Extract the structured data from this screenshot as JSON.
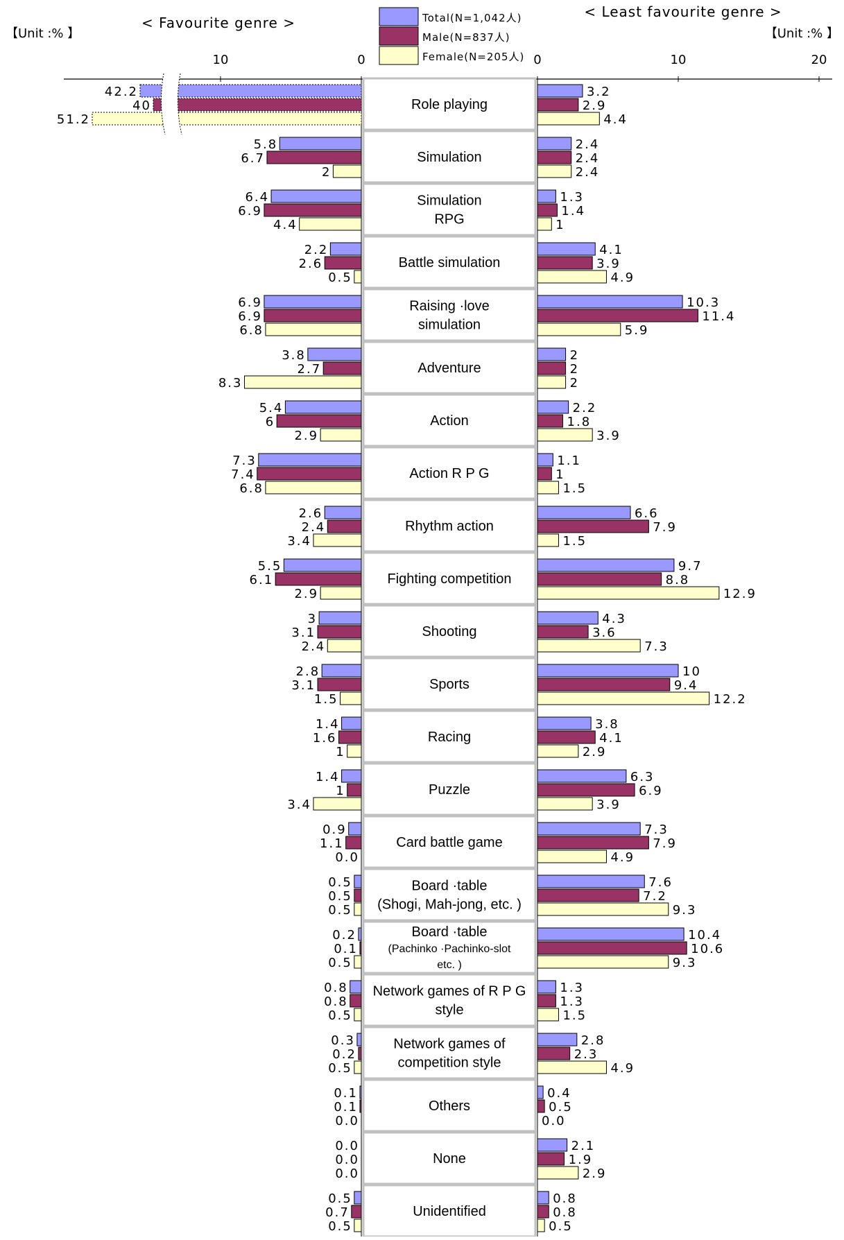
{
  "titles": {
    "left": "< Favourite genre >",
    "right": "< Least favourite genre >",
    "unit_left": "【Unit :% 】",
    "unit_right": "【Unit :% 】"
  },
  "colors": {
    "total": "#9999ff",
    "male": "#993366",
    "female": "#ffffcc",
    "cat_box_border": "#c0c0c0"
  },
  "chart_data": {
    "type": "bar",
    "orientation": "horizontal-butterfly",
    "legend": [
      {
        "key": "total",
        "label": "Total(N=1,042人)"
      },
      {
        "key": "male",
        "label": "Male(N=837人)"
      },
      {
        "key": "female",
        "label": "Female(N=205人)"
      }
    ],
    "left_panel": {
      "title": "< Favourite genre >",
      "ticks": [
        "10",
        "0"
      ],
      "broken_axis": true
    },
    "right_panel": {
      "title": "< Least favourite genre >",
      "ticks": [
        "0",
        "10",
        "20"
      ],
      "xlim": [
        0,
        20
      ]
    },
    "categories": [
      {
        "lines": [
          "Role playing"
        ],
        "small": false,
        "fav": {
          "total": {
            "v": 42.2,
            "t": "42.2"
          },
          "male": {
            "v": 40,
            "t": "40"
          },
          "female": {
            "v": 51.2,
            "t": "51.2"
          }
        },
        "least": {
          "total": {
            "v": 3.2,
            "t": "3.2"
          },
          "male": {
            "v": 2.9,
            "t": "2.9"
          },
          "female": {
            "v": 4.4,
            "t": "4.4"
          }
        }
      },
      {
        "lines": [
          "Simulation"
        ],
        "small": false,
        "fav": {
          "total": {
            "v": 5.8,
            "t": "5.8"
          },
          "male": {
            "v": 6.7,
            "t": "6.7"
          },
          "female": {
            "v": 2,
            "t": "2"
          }
        },
        "least": {
          "total": {
            "v": 2.4,
            "t": "2.4"
          },
          "male": {
            "v": 2.4,
            "t": "2.4"
          },
          "female": {
            "v": 2.4,
            "t": "2.4"
          }
        }
      },
      {
        "lines": [
          "Simulation",
          "RPG"
        ],
        "small": false,
        "fav": {
          "total": {
            "v": 6.4,
            "t": "6.4"
          },
          "male": {
            "v": 6.9,
            "t": "6.9"
          },
          "female": {
            "v": 4.4,
            "t": "4.4"
          }
        },
        "least": {
          "total": {
            "v": 1.3,
            "t": "1.3"
          },
          "male": {
            "v": 1.4,
            "t": "1.4"
          },
          "female": {
            "v": 1,
            "t": "1"
          }
        }
      },
      {
        "lines": [
          "Battle simulation"
        ],
        "small": false,
        "fav": {
          "total": {
            "v": 2.2,
            "t": "2.2"
          },
          "male": {
            "v": 2.6,
            "t": "2.6"
          },
          "female": {
            "v": 0.5,
            "t": "0.5"
          }
        },
        "least": {
          "total": {
            "v": 4.1,
            "t": "4.1"
          },
          "male": {
            "v": 3.9,
            "t": "3.9"
          },
          "female": {
            "v": 4.9,
            "t": "4.9"
          }
        }
      },
      {
        "lines": [
          "Raising ·love",
          "simulation"
        ],
        "small": false,
        "fav": {
          "total": {
            "v": 6.9,
            "t": "6.9"
          },
          "male": {
            "v": 6.9,
            "t": "6.9"
          },
          "female": {
            "v": 6.8,
            "t": "6.8"
          }
        },
        "least": {
          "total": {
            "v": 10.3,
            "t": "10.3"
          },
          "male": {
            "v": 11.4,
            "t": "11.4"
          },
          "female": {
            "v": 5.9,
            "t": "5.9"
          }
        }
      },
      {
        "lines": [
          "Adventure"
        ],
        "small": false,
        "fav": {
          "total": {
            "v": 3.8,
            "t": "3.8"
          },
          "male": {
            "v": 2.7,
            "t": "2.7"
          },
          "female": {
            "v": 8.3,
            "t": "8.3"
          }
        },
        "least": {
          "total": {
            "v": 2,
            "t": "2"
          },
          "male": {
            "v": 2,
            "t": "2"
          },
          "female": {
            "v": 2,
            "t": "2"
          }
        }
      },
      {
        "lines": [
          "Action"
        ],
        "small": false,
        "fav": {
          "total": {
            "v": 5.4,
            "t": "5.4"
          },
          "male": {
            "v": 6,
            "t": "6"
          },
          "female": {
            "v": 2.9,
            "t": "2.9"
          }
        },
        "least": {
          "total": {
            "v": 2.2,
            "t": "2.2"
          },
          "male": {
            "v": 1.8,
            "t": "1.8"
          },
          "female": {
            "v": 3.9,
            "t": "3.9"
          }
        }
      },
      {
        "lines": [
          "Action R P G"
        ],
        "small": false,
        "fav": {
          "total": {
            "v": 7.3,
            "t": "7.3"
          },
          "male": {
            "v": 7.4,
            "t": "7.4"
          },
          "female": {
            "v": 6.8,
            "t": "6.8"
          }
        },
        "least": {
          "total": {
            "v": 1.1,
            "t": "1.1"
          },
          "male": {
            "v": 1,
            "t": "1"
          },
          "female": {
            "v": 1.5,
            "t": "1.5"
          }
        }
      },
      {
        "lines": [
          "Rhythm action"
        ],
        "small": false,
        "fav": {
          "total": {
            "v": 2.6,
            "t": "2.6"
          },
          "male": {
            "v": 2.4,
            "t": "2.4"
          },
          "female": {
            "v": 3.4,
            "t": "3.4"
          }
        },
        "least": {
          "total": {
            "v": 6.6,
            "t": "6.6"
          },
          "male": {
            "v": 7.9,
            "t": "7.9"
          },
          "female": {
            "v": 1.5,
            "t": "1.5"
          }
        }
      },
      {
        "lines": [
          "Fighting competition"
        ],
        "small": false,
        "fav": {
          "total": {
            "v": 5.5,
            "t": "5.5"
          },
          "male": {
            "v": 6.1,
            "t": "6.1"
          },
          "female": {
            "v": 2.9,
            "t": "2.9"
          }
        },
        "least": {
          "total": {
            "v": 9.7,
            "t": "9.7"
          },
          "male": {
            "v": 8.8,
            "t": "8.8"
          },
          "female": {
            "v": 12.9,
            "t": "12.9"
          }
        }
      },
      {
        "lines": [
          "Shooting"
        ],
        "small": false,
        "fav": {
          "total": {
            "v": 3,
            "t": "3"
          },
          "male": {
            "v": 3.1,
            "t": "3.1"
          },
          "female": {
            "v": 2.4,
            "t": "2.4"
          }
        },
        "least": {
          "total": {
            "v": 4.3,
            "t": "4.3"
          },
          "male": {
            "v": 3.6,
            "t": "3.6"
          },
          "female": {
            "v": 7.3,
            "t": "7.3"
          }
        }
      },
      {
        "lines": [
          "Sports"
        ],
        "small": false,
        "fav": {
          "total": {
            "v": 2.8,
            "t": "2.8"
          },
          "male": {
            "v": 3.1,
            "t": "3.1"
          },
          "female": {
            "v": 1.5,
            "t": "1.5"
          }
        },
        "least": {
          "total": {
            "v": 10,
            "t": "10"
          },
          "male": {
            "v": 9.4,
            "t": "9.4"
          },
          "female": {
            "v": 12.2,
            "t": "12.2"
          }
        }
      },
      {
        "lines": [
          "Racing"
        ],
        "small": false,
        "fav": {
          "total": {
            "v": 1.4,
            "t": "1.4"
          },
          "male": {
            "v": 1.6,
            "t": "1.6"
          },
          "female": {
            "v": 1,
            "t": "1"
          }
        },
        "least": {
          "total": {
            "v": 3.8,
            "t": "3.8"
          },
          "male": {
            "v": 4.1,
            "t": "4.1"
          },
          "female": {
            "v": 2.9,
            "t": "2.9"
          }
        }
      },
      {
        "lines": [
          "Puzzle"
        ],
        "small": false,
        "fav": {
          "total": {
            "v": 1.4,
            "t": "1.4"
          },
          "male": {
            "v": 1,
            "t": "1"
          },
          "female": {
            "v": 3.4,
            "t": "3.4"
          }
        },
        "least": {
          "total": {
            "v": 6.3,
            "t": "6.3"
          },
          "male": {
            "v": 6.9,
            "t": "6.9"
          },
          "female": {
            "v": 3.9,
            "t": "3.9"
          }
        }
      },
      {
        "lines": [
          "Card battle game"
        ],
        "small": false,
        "fav": {
          "total": {
            "v": 0.9,
            "t": "0.9"
          },
          "male": {
            "v": 1.1,
            "t": "1.1"
          },
          "female": {
            "v": 0,
            "t": "0.0"
          }
        },
        "least": {
          "total": {
            "v": 7.3,
            "t": "7.3"
          },
          "male": {
            "v": 7.9,
            "t": "7.9"
          },
          "female": {
            "v": 4.9,
            "t": "4.9"
          }
        }
      },
      {
        "lines": [
          "Board ·table",
          "(Shogi, Mah-jong, etc. )"
        ],
        "small": false,
        "fav": {
          "total": {
            "v": 0.5,
            "t": "0.5"
          },
          "male": {
            "v": 0.5,
            "t": "0.5"
          },
          "female": {
            "v": 0.5,
            "t": "0.5"
          }
        },
        "least": {
          "total": {
            "v": 7.6,
            "t": "7.6"
          },
          "male": {
            "v": 7.2,
            "t": "7.2"
          },
          "female": {
            "v": 9.3,
            "t": "9.3"
          }
        }
      },
      {
        "lines": [
          "Board ·table",
          "(Pachinko ·Pachinko-slot",
          "etc. )"
        ],
        "small": true,
        "fav": {
          "total": {
            "v": 0.2,
            "t": "0.2"
          },
          "male": {
            "v": 0.1,
            "t": "0.1"
          },
          "female": {
            "v": 0.5,
            "t": "0.5"
          }
        },
        "least": {
          "total": {
            "v": 10.4,
            "t": "10.4"
          },
          "male": {
            "v": 10.6,
            "t": "10.6"
          },
          "female": {
            "v": 9.3,
            "t": "9.3"
          }
        }
      },
      {
        "lines": [
          "Network games of R P G",
          "style"
        ],
        "small": false,
        "fav": {
          "total": {
            "v": 0.8,
            "t": "0.8"
          },
          "male": {
            "v": 0.8,
            "t": "0.8"
          },
          "female": {
            "v": 0.5,
            "t": "0.5"
          }
        },
        "least": {
          "total": {
            "v": 1.3,
            "t": "1.3"
          },
          "male": {
            "v": 1.3,
            "t": "1.3"
          },
          "female": {
            "v": 1.5,
            "t": "1.5"
          }
        }
      },
      {
        "lines": [
          "Network games of",
          "competition style"
        ],
        "small": false,
        "fav": {
          "total": {
            "v": 0.3,
            "t": "0.3"
          },
          "male": {
            "v": 0.2,
            "t": "0.2"
          },
          "female": {
            "v": 0.5,
            "t": "0.5"
          }
        },
        "least": {
          "total": {
            "v": 2.8,
            "t": "2.8"
          },
          "male": {
            "v": 2.3,
            "t": "2.3"
          },
          "female": {
            "v": 4.9,
            "t": "4.9"
          }
        }
      },
      {
        "lines": [
          "Others"
        ],
        "small": false,
        "fav": {
          "total": {
            "v": 0.1,
            "t": "0.1"
          },
          "male": {
            "v": 0.1,
            "t": "0.1"
          },
          "female": {
            "v": 0,
            "t": "0.0"
          }
        },
        "least": {
          "total": {
            "v": 0.4,
            "t": "0.4"
          },
          "male": {
            "v": 0.5,
            "t": "0.5"
          },
          "female": {
            "v": 0,
            "t": "0.0"
          }
        }
      },
      {
        "lines": [
          "None"
        ],
        "small": false,
        "fav": {
          "total": {
            "v": 0,
            "t": "0.0"
          },
          "male": {
            "v": 0,
            "t": "0.0"
          },
          "female": {
            "v": 0,
            "t": "0.0"
          }
        },
        "least": {
          "total": {
            "v": 2.1,
            "t": "2.1"
          },
          "male": {
            "v": 1.9,
            "t": "1.9"
          },
          "female": {
            "v": 2.9,
            "t": "2.9"
          }
        }
      },
      {
        "lines": [
          "Unidentified"
        ],
        "small": false,
        "fav": {
          "total": {
            "v": 0.5,
            "t": "0.5"
          },
          "male": {
            "v": 0.7,
            "t": "0.7"
          },
          "female": {
            "v": 0.5,
            "t": "0.5"
          }
        },
        "least": {
          "total": {
            "v": 0.8,
            "t": "0.8"
          },
          "male": {
            "v": 0.8,
            "t": "0.8"
          },
          "female": {
            "v": 0.5,
            "t": "0.5"
          }
        }
      }
    ]
  }
}
